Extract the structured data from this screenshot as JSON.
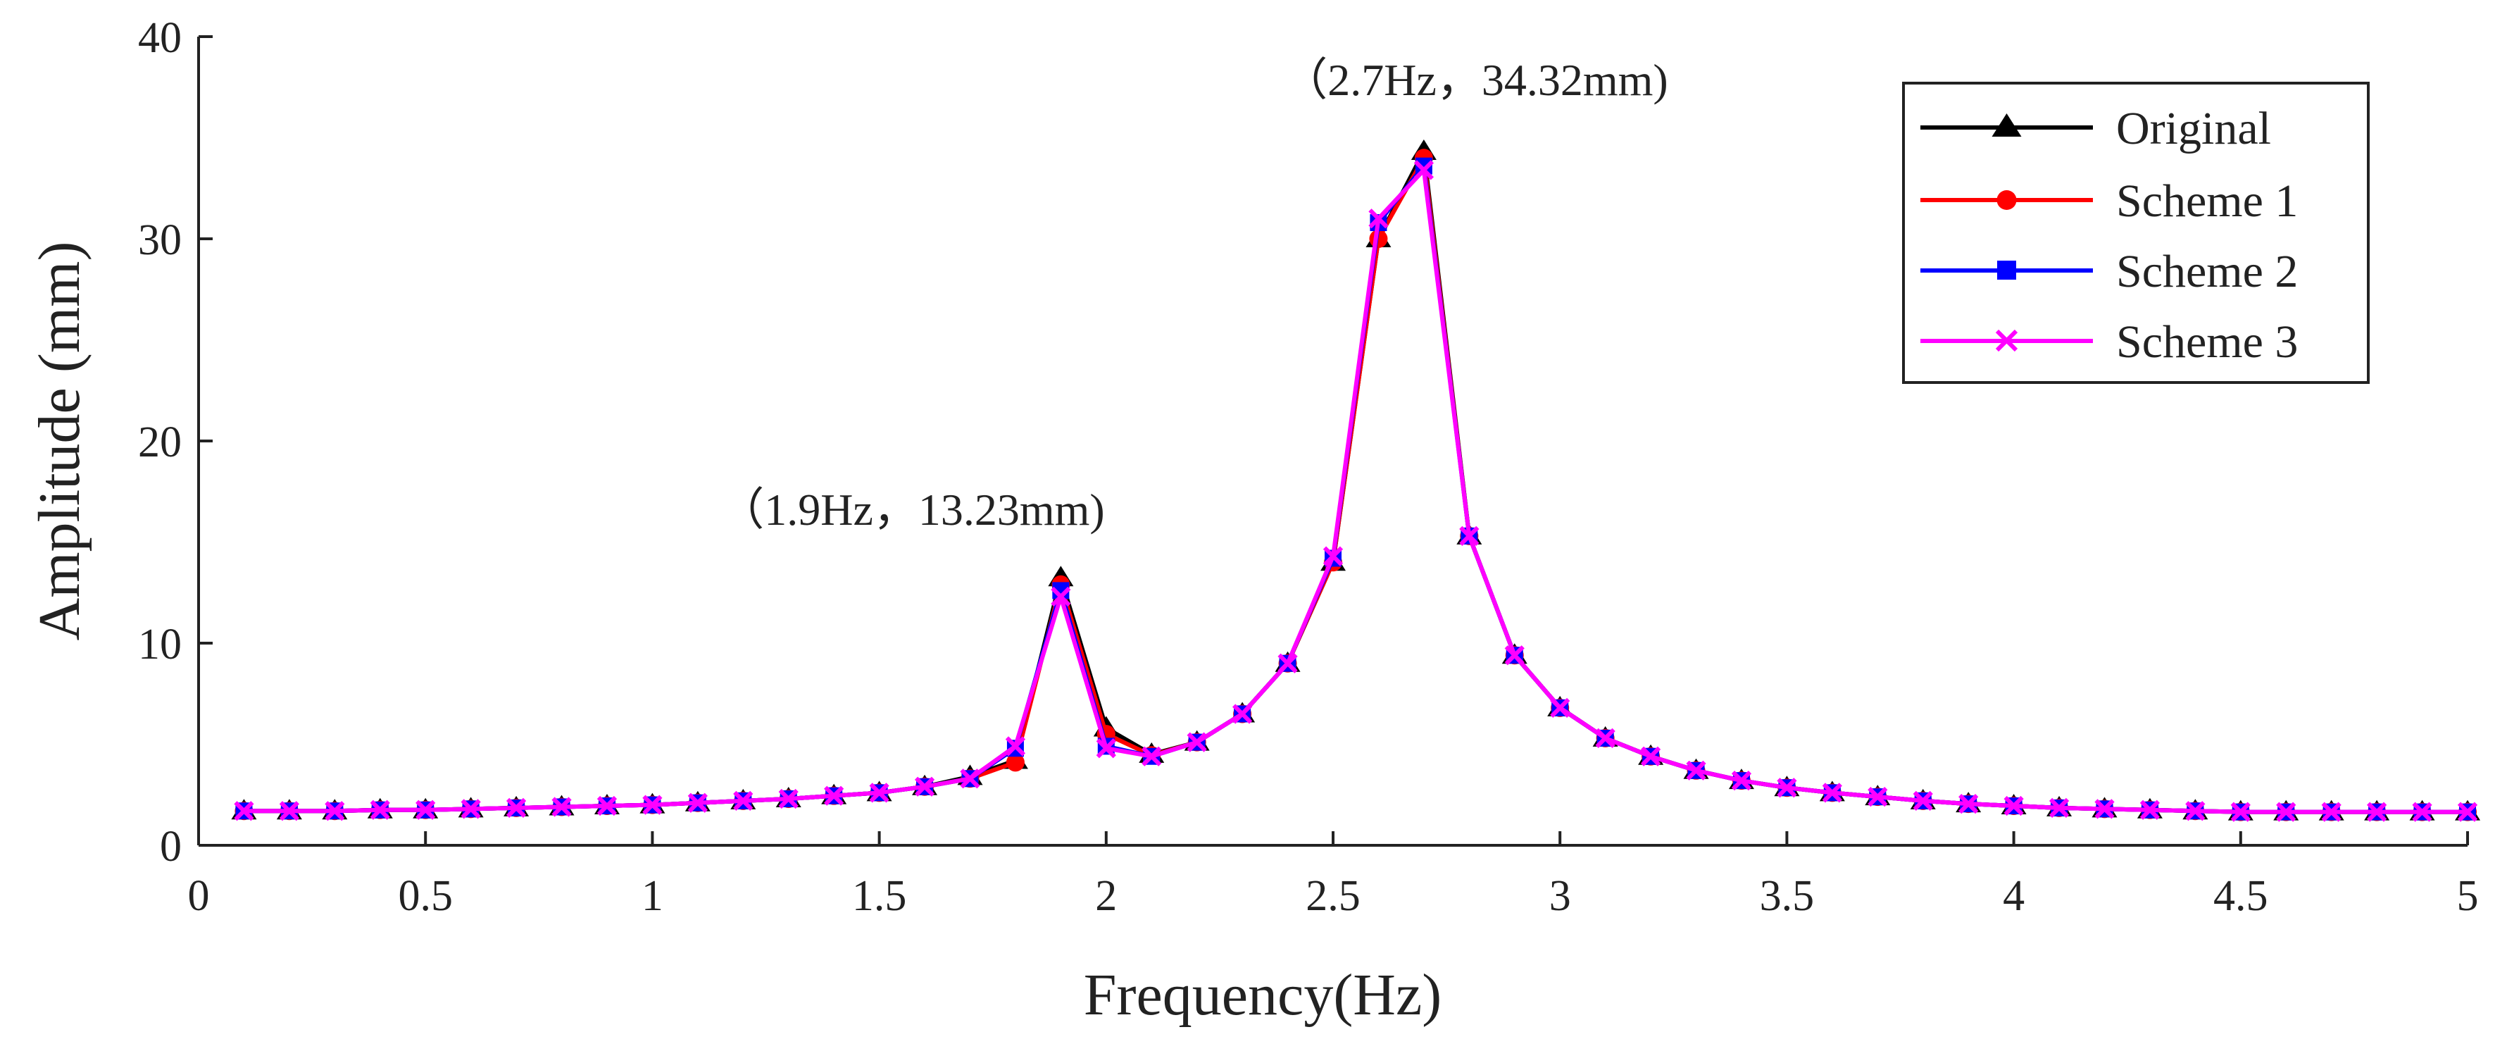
{
  "chart_data": {
    "type": "line",
    "title": "",
    "xlabel": "Frequency(Hz)",
    "ylabel": "Amplitude (mm)",
    "xlim": [
      0,
      5
    ],
    "ylim": [
      0,
      40
    ],
    "xticks": [
      0,
      0.5,
      1,
      1.5,
      2,
      2.5,
      3,
      3.5,
      4,
      4.5,
      5
    ],
    "xtick_labels": [
      "0",
      "0.5",
      "1",
      "1.5",
      "2",
      "2.5",
      "3",
      "3.5",
      "4",
      "4.5",
      "5"
    ],
    "yticks": [
      0,
      10,
      20,
      30,
      40
    ],
    "ytick_labels": [
      "0",
      "10",
      "20",
      "30",
      "40"
    ],
    "grid": false,
    "legend_position": "top-right",
    "x": [
      0.1,
      0.2,
      0.3,
      0.4,
      0.5,
      0.6,
      0.7,
      0.8,
      0.9,
      1.0,
      1.1,
      1.2,
      1.3,
      1.4,
      1.5,
      1.6,
      1.7,
      1.8,
      1.9,
      2.0,
      2.1,
      2.2,
      2.3,
      2.4,
      2.5,
      2.6,
      2.7,
      2.8,
      2.9,
      3.0,
      3.1,
      3.2,
      3.3,
      3.4,
      3.5,
      3.6,
      3.7,
      3.8,
      3.9,
      4.0,
      4.1,
      4.2,
      4.3,
      4.4,
      4.5,
      4.6,
      4.7,
      4.8,
      4.9,
      5.0
    ],
    "series": [
      {
        "name": "Original",
        "color": "#000000",
        "marker": "triangle",
        "values": [
          1.7,
          1.7,
          1.7,
          1.75,
          1.75,
          1.8,
          1.85,
          1.9,
          1.95,
          2.0,
          2.1,
          2.2,
          2.3,
          2.45,
          2.6,
          2.9,
          3.4,
          4.2,
          13.23,
          5.8,
          4.5,
          5.1,
          6.5,
          9.0,
          14.0,
          30.0,
          34.32,
          15.3,
          9.4,
          6.8,
          5.3,
          4.4,
          3.7,
          3.2,
          2.85,
          2.6,
          2.4,
          2.2,
          2.05,
          1.95,
          1.85,
          1.8,
          1.75,
          1.7,
          1.65,
          1.65,
          1.65,
          1.65,
          1.65,
          1.65
        ]
      },
      {
        "name": "Scheme 1",
        "color": "#ff0000",
        "marker": "circle",
        "values": [
          1.7,
          1.7,
          1.7,
          1.75,
          1.75,
          1.8,
          1.85,
          1.9,
          1.95,
          2.0,
          2.1,
          2.2,
          2.3,
          2.45,
          2.6,
          2.9,
          3.3,
          4.1,
          12.9,
          5.5,
          4.45,
          5.1,
          6.5,
          9.0,
          14.0,
          30.0,
          34.0,
          15.3,
          9.4,
          6.8,
          5.3,
          4.4,
          3.7,
          3.2,
          2.85,
          2.6,
          2.4,
          2.2,
          2.05,
          1.95,
          1.85,
          1.8,
          1.75,
          1.7,
          1.65,
          1.65,
          1.65,
          1.65,
          1.65,
          1.65
        ]
      },
      {
        "name": "Scheme 2",
        "color": "#0000ff",
        "marker": "square",
        "values": [
          1.7,
          1.7,
          1.7,
          1.75,
          1.75,
          1.8,
          1.85,
          1.9,
          1.95,
          2.0,
          2.1,
          2.2,
          2.3,
          2.45,
          2.6,
          2.9,
          3.3,
          4.8,
          12.6,
          4.9,
          4.4,
          5.1,
          6.5,
          9.0,
          14.2,
          30.8,
          33.6,
          15.3,
          9.4,
          6.8,
          5.3,
          4.4,
          3.7,
          3.2,
          2.85,
          2.6,
          2.4,
          2.2,
          2.05,
          1.95,
          1.85,
          1.8,
          1.75,
          1.7,
          1.65,
          1.65,
          1.65,
          1.65,
          1.65,
          1.65
        ]
      },
      {
        "name": "Scheme 3",
        "color": "#ff00ff",
        "marker": "x",
        "values": [
          1.7,
          1.7,
          1.7,
          1.75,
          1.75,
          1.8,
          1.85,
          1.9,
          1.95,
          2.0,
          2.1,
          2.2,
          2.3,
          2.45,
          2.6,
          2.9,
          3.3,
          4.9,
          12.3,
          4.8,
          4.4,
          5.1,
          6.5,
          9.0,
          14.3,
          31.0,
          33.4,
          15.3,
          9.4,
          6.8,
          5.3,
          4.4,
          3.7,
          3.2,
          2.85,
          2.6,
          2.4,
          2.2,
          2.05,
          1.95,
          1.85,
          1.8,
          1.75,
          1.7,
          1.65,
          1.65,
          1.65,
          1.65,
          1.65,
          1.65
        ]
      }
    ],
    "annotations": [
      {
        "text": "（1.9Hz，13.23mm)",
        "x": 1.9,
        "y": 13.23
      },
      {
        "text": "（2.7Hz，34.32mm)",
        "x": 2.7,
        "y": 34.32
      }
    ]
  }
}
